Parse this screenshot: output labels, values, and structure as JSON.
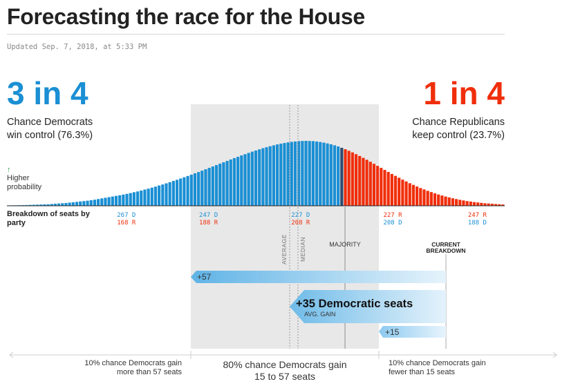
{
  "header": {
    "title": "Forecasting the race for the House",
    "updated": "Updated Sep. 7, 2018, at 5:33 PM"
  },
  "dem": {
    "big": "3 in 4",
    "chance_line1": "Chance Democrats",
    "chance_line2": "win control (76.3%)"
  },
  "rep": {
    "big": "1 in 4",
    "chance_line1": "Chance Republicans",
    "chance_line2": "keep control (23.7%)"
  },
  "higher_prob": {
    "arrow": "↑",
    "line1": "Higher",
    "line2": "probability"
  },
  "breakdown_label": {
    "line1": "Breakdown of seats by",
    "line2": "party"
  },
  "bottom": {
    "left_line1": "10% chance Democrats gain",
    "left_line2": "more than 57 seats",
    "mid_line1": "80% chance Democrats gain",
    "mid_line2": "15 to 57 seats",
    "right_line1": "10% chance Democrats gain",
    "right_line2": "fewer than 15 seats"
  },
  "gains": {
    "high": "+57",
    "avg": "+35 Democratic seats",
    "avg_sub": "AVG. GAIN",
    "low": "+15"
  },
  "colors": {
    "dem": "#1a8fd4",
    "rep": "#f02e0b",
    "majority_bar": "#2c4b6e",
    "band": "#e8e8e8"
  },
  "chart_data": {
    "type": "bar",
    "x_description": "Democratic seats won",
    "dem_range": [
      186,
      218
    ],
    "majority_seat": 218,
    "x_start": 289,
    "x_end": 152,
    "values": [
      0.3,
      0.35,
      0.4,
      0.45,
      0.5,
      0.6,
      0.7,
      0.8,
      0.9,
      1.0,
      1.1,
      1.2,
      1.4,
      1.6,
      1.8,
      2.0,
      2.2,
      2.5,
      2.8,
      3.1,
      3.4,
      3.7,
      4.0,
      4.4,
      4.8,
      5.3,
      5.8,
      6.3,
      6.8,
      7.3,
      7.8,
      8.3,
      8.8,
      9.4,
      10.0,
      10.7,
      11.3,
      12.0,
      12.8,
      13.5,
      14.3,
      15.1,
      16.0,
      16.8,
      17.7,
      18.6,
      19.6,
      20.5,
      21.5,
      22.5,
      23.5,
      24.5,
      25.6,
      26.6,
      27.7,
      28.8,
      29.9,
      31.0,
      32.1,
      33.2,
      34.3,
      35.4,
      36.5,
      37.6,
      38.6,
      39.7,
      40.7,
      41.7,
      42.7,
      43.6,
      44.5,
      45.4,
      46.2,
      47.0,
      47.7,
      48.4,
      49.0,
      49.5,
      50.0,
      50.4,
      50.7,
      51.0,
      51.1,
      51.2,
      51.1,
      51.0,
      50.7,
      50.3,
      49.8,
      49.2,
      48.5,
      47.7,
      46.8,
      45.7,
      44.6,
      43.4,
      42.1,
      40.7,
      39.3,
      37.8,
      36.3,
      34.7,
      33.1,
      31.5,
      29.9,
      28.3,
      26.7,
      25.1,
      23.6,
      22.1,
      20.6,
      19.2,
      17.8,
      16.5,
      15.2,
      14.0,
      12.9,
      11.8,
      10.8,
      9.8,
      8.9,
      8.1,
      7.3,
      6.6,
      5.9,
      5.3,
      4.7,
      4.2,
      3.7,
      3.3,
      2.9,
      2.6,
      2.3,
      2.0,
      1.8,
      1.6,
      1.4,
      1.2,
      1.0
    ],
    "ticks": [
      {
        "d": "267 D",
        "r": "168 R",
        "pos": 0.24
      },
      {
        "d": "247 D",
        "r": "188 R",
        "pos": 0.405
      },
      {
        "d": "227 D",
        "r": "208 R",
        "pos": 0.59
      },
      {
        "d": "227 R",
        "r": "208 D",
        "pos": 0.775
      },
      {
        "d": "247 R",
        "r": "188 D",
        "pos": 0.945
      }
    ],
    "markers": {
      "average": "AVERAGE",
      "median": "MEDIAN",
      "majority": "MAJORITY",
      "current_line1": "CURRENT",
      "current_line2": "BREAKDOWN"
    }
  }
}
